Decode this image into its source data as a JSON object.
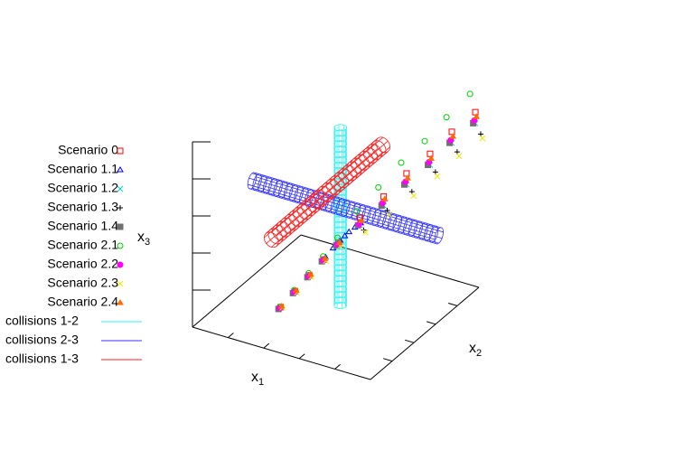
{
  "chart_data": {
    "type": "scatter3d",
    "xlabel": {
      "text": "x",
      "sub": "1"
    },
    "ylabel": {
      "text": "x",
      "sub": "2"
    },
    "zlabel": {
      "text": "x",
      "sub": "3"
    },
    "xlim": [
      0,
      10
    ],
    "ylim": [
      0,
      10
    ],
    "zlim": [
      0,
      10
    ],
    "xticks": [
      2,
      4,
      6,
      8
    ],
    "yticks": [
      2,
      4,
      6,
      8
    ],
    "zticks": [
      2,
      4,
      6,
      8,
      10
    ],
    "series": [
      {
        "name": "Scenario 0",
        "color": "#ff0000",
        "marker": "square-open",
        "x": [
          2.7,
          2.75,
          2.8,
          2.85,
          2.9,
          4.0,
          5.2,
          6.3,
          7.5,
          8.6,
          9.8
        ],
        "y": [
          3.7,
          4.95,
          6.2,
          7.45,
          8.7,
          8.9,
          9.1,
          9.4,
          9.6,
          9.8,
          10
        ],
        "z": [
          0,
          0.25,
          0.5,
          0.75,
          1.05,
          2.6,
          4.0,
          5.4,
          6.7,
          8.1,
          9.4
        ]
      },
      {
        "name": "Scenario 1.1",
        "color": "#0000ff",
        "marker": "triangle-open",
        "x": [
          2.85,
          2.9,
          3.0,
          3.2,
          3.4,
          3.7,
          4.0
        ],
        "y": [
          7.6,
          8.2,
          8.7,
          8.8,
          8.85,
          8.9,
          8.95
        ],
        "z": [
          0.8,
          1.0,
          1.2,
          1.45,
          1.7,
          2.0,
          2.3
        ]
      },
      {
        "name": "Scenario 1.2",
        "color": "#00d0d0",
        "marker": "cross",
        "x": [
          2.7,
          2.75,
          2.8,
          2.85,
          2.9,
          4.0,
          5.2,
          6.3,
          7.5,
          8.6,
          9.8
        ],
        "y": [
          3.7,
          4.95,
          6.2,
          7.45,
          8.7,
          8.9,
          9.1,
          9.4,
          9.6,
          9.8,
          10
        ],
        "z": [
          0,
          0.25,
          0.5,
          0.75,
          1,
          2.2,
          3.5,
          4.8,
          6.1,
          7.5,
          8.8
        ]
      },
      {
        "name": "Scenario 1.3",
        "color": "#000000",
        "marker": "plus",
        "x": [
          2.75,
          2.8,
          2.85,
          2.9,
          2.95,
          4.2,
          5.4,
          6.6,
          7.8,
          8.9,
          10.1
        ],
        "y": [
          3.7,
          4.95,
          6.2,
          7.45,
          8.7,
          8.9,
          9.1,
          9.4,
          9.6,
          9.8,
          10
        ],
        "z": [
          0,
          0.25,
          0.5,
          0.75,
          0.95,
          2.0,
          3.3,
          4.5,
          5.8,
          7.1,
          8.3
        ]
      },
      {
        "name": "Scenario 1.4",
        "color": "#707070",
        "marker": "square",
        "x": [
          2.7,
          2.75,
          2.8,
          2.85,
          2.9,
          4.0,
          5.2,
          6.3,
          7.5,
          8.6,
          9.8
        ],
        "y": [
          3.5,
          4.75,
          6.0,
          7.25,
          8.5,
          8.7,
          8.9,
          9.2,
          9.4,
          9.6,
          9.8
        ],
        "z": [
          0,
          0.25,
          0.5,
          0.75,
          1,
          2.3,
          3.6,
          4.9,
          6.2,
          7.6,
          8.9
        ]
      },
      {
        "name": "Scenario 2.1",
        "color": "#00cc00",
        "marker": "circle-open",
        "x": [
          2.65,
          2.7,
          2.75,
          2.8,
          2.85,
          3.8,
          4.9,
          6.0,
          7.2,
          8.3,
          9.5
        ],
        "y": [
          3.7,
          4.95,
          6.2,
          7.45,
          8.7,
          8.9,
          9.1,
          9.4,
          9.6,
          9.8,
          10
        ],
        "z": [
          0,
          0.3,
          0.6,
          0.9,
          1.3,
          2.9,
          4.4,
          5.9,
          7.3,
          8.8,
          10.3
        ]
      },
      {
        "name": "Scenario 2.2",
        "color": "#ff00ff",
        "marker": "circle",
        "x": [
          2.7,
          2.75,
          2.8,
          2.85,
          2.9,
          4.0,
          5.2,
          6.3,
          7.5,
          8.6,
          9.8
        ],
        "y": [
          3.6,
          4.85,
          6.1,
          7.35,
          8.6,
          8.8,
          9.0,
          9.3,
          9.5,
          9.7,
          9.9
        ],
        "z": [
          0,
          0.25,
          0.5,
          0.75,
          1,
          2.3,
          3.7,
          5,
          6.3,
          7.7,
          9
        ]
      },
      {
        "name": "Scenario 2.3",
        "color": "#e8e800",
        "marker": "cross",
        "x": [
          2.8,
          2.85,
          2.9,
          2.95,
          3.0,
          4.3,
          5.5,
          6.7,
          7.9,
          9.0,
          10.2
        ],
        "y": [
          3.7,
          4.95,
          6.2,
          7.45,
          8.7,
          8.9,
          9.1,
          9.4,
          9.6,
          9.8,
          10
        ],
        "z": [
          0,
          0.2,
          0.45,
          0.7,
          0.9,
          1.9,
          3.1,
          4.3,
          5.6,
          6.9,
          8.1
        ]
      },
      {
        "name": "Scenario 2.4",
        "color": "#ff6a00",
        "marker": "triangle",
        "x": [
          2.7,
          2.75,
          2.8,
          2.85,
          2.9,
          4.0,
          5.2,
          6.3,
          7.5,
          8.6,
          9.8
        ],
        "y": [
          3.8,
          5.05,
          6.3,
          7.55,
          8.8,
          9.0,
          9.2,
          9.5,
          9.7,
          9.9,
          10.1
        ],
        "z": [
          0,
          0.25,
          0.5,
          0.75,
          1,
          2.4,
          3.8,
          5.1,
          6.4,
          7.8,
          9.1
        ]
      }
    ],
    "collisions": [
      {
        "name": "collisions 1-2",
        "color": "#33f0f0",
        "start": [
          5.2,
          5.1,
          0.1
        ],
        "end": [
          5.2,
          5.1,
          9.7
        ],
        "radius": 0.3
      },
      {
        "name": "collisions 2-3",
        "color": "#3333ff",
        "start": [
          0.3,
          5,
          5.5
        ],
        "end": [
          10.8,
          5,
          5.5
        ],
        "radius": 0.4
      },
      {
        "name": "collisions 1-3",
        "color": "#ff2020",
        "start": [
          4,
          0.7,
          5.5
        ],
        "end": [
          4,
          11,
          5.5
        ],
        "radius": 0.4
      }
    ]
  }
}
